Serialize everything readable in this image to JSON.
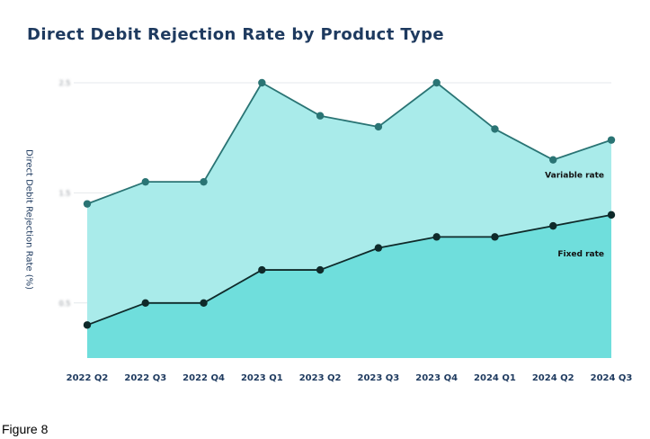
{
  "chart_data": {
    "type": "area",
    "title": "Direct Debit Rejection Rate by Product Type",
    "xlabel": "",
    "ylabel": "Direct Debit Rejection Rate (%)",
    "categories": [
      "2022 Q2",
      "2022 Q3",
      "2022 Q4",
      "2023 Q1",
      "2023 Q2",
      "2023 Q3",
      "2023 Q4",
      "2024 Q1",
      "2024 Q2",
      "2024 Q3"
    ],
    "ylim": [
      0,
      2.5
    ],
    "yticks": [
      0.5,
      1.5,
      2.5
    ],
    "ytick_labels": [
      "0.5",
      "1.5",
      "2.5"
    ],
    "grid": true,
    "series": [
      {
        "name": "Variable rate",
        "color": "#2a7474",
        "fill": "#a9ebea",
        "values": [
          1.4,
          1.6,
          1.6,
          2.5,
          2.2,
          2.1,
          2.5,
          2.08,
          1.8,
          1.98
        ]
      },
      {
        "name": "Fixed rate",
        "color": "#0f2a2a",
        "fill": "#6fdedc",
        "values": [
          0.3,
          0.5,
          0.5,
          0.8,
          0.8,
          1.0,
          1.1,
          1.1,
          1.2,
          1.3
        ]
      }
    ]
  },
  "caption": "Figure 8"
}
